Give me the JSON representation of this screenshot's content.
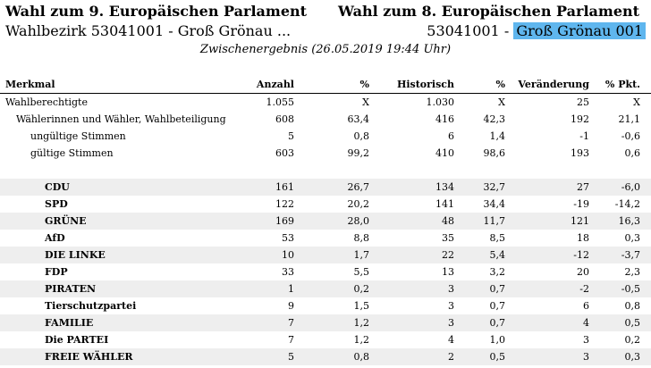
{
  "header": {
    "left_title": "Wahl zum 9. Europäischen Parlament",
    "right_title": "Wahl zum 8. Europäischen Parlament",
    "left_subtitle": "Wahlbezirk 53041001 - Groß Grönau ...",
    "right_subtitle_prefix": "53041001 -",
    "right_subtitle_highlight": "Groß Grönau 001",
    "status": "Zwischenergebnis (26.05.2019 19:44 Uhr)"
  },
  "table": {
    "columns": [
      "Merkmal",
      "Anzahl",
      "%",
      "Historisch",
      "%",
      "Veränderung",
      "% Pkt."
    ],
    "summary_rows": [
      [
        "Wahlberechtigte",
        "1.055",
        "X",
        "1.030",
        "X",
        "25",
        "X"
      ],
      [
        "Wählerinnen und Wähler, Wahlbeteiligung",
        "608",
        "63,4",
        "416",
        "42,3",
        "192",
        "21,1"
      ],
      [
        "ungültige Stimmen",
        "5",
        "0,8",
        "6",
        "1,4",
        "-1",
        "-0,6"
      ],
      [
        "gültige Stimmen",
        "603",
        "99,2",
        "410",
        "98,6",
        "193",
        "0,6"
      ]
    ],
    "party_rows": [
      [
        "CDU",
        "161",
        "26,7",
        "134",
        "32,7",
        "27",
        "-6,0"
      ],
      [
        "SPD",
        "122",
        "20,2",
        "141",
        "34,4",
        "-19",
        "-14,2"
      ],
      [
        "GRÜNE",
        "169",
        "28,0",
        "48",
        "11,7",
        "121",
        "16,3"
      ],
      [
        "AfD",
        "53",
        "8,8",
        "35",
        "8,5",
        "18",
        "0,3"
      ],
      [
        "DIE LINKE",
        "10",
        "1,7",
        "22",
        "5,4",
        "-12",
        "-3,7"
      ],
      [
        "FDP",
        "33",
        "5,5",
        "13",
        "3,2",
        "20",
        "2,3"
      ],
      [
        "PIRATEN",
        "1",
        "0,2",
        "3",
        "0,7",
        "-2",
        "-0,5"
      ],
      [
        "Tierschutzpartei",
        "9",
        "1,5",
        "3",
        "0,7",
        "6",
        "0,8"
      ],
      [
        "FAMILIE",
        "7",
        "1,2",
        "3",
        "0,7",
        "4",
        "0,5"
      ],
      [
        "Die PARTEI",
        "7",
        "1,2",
        "4",
        "1,0",
        "3",
        "0,2"
      ],
      [
        "FREIE WÄHLER",
        "5",
        "0,8",
        "2",
        "0,5",
        "3",
        "0,3"
      ]
    ]
  }
}
